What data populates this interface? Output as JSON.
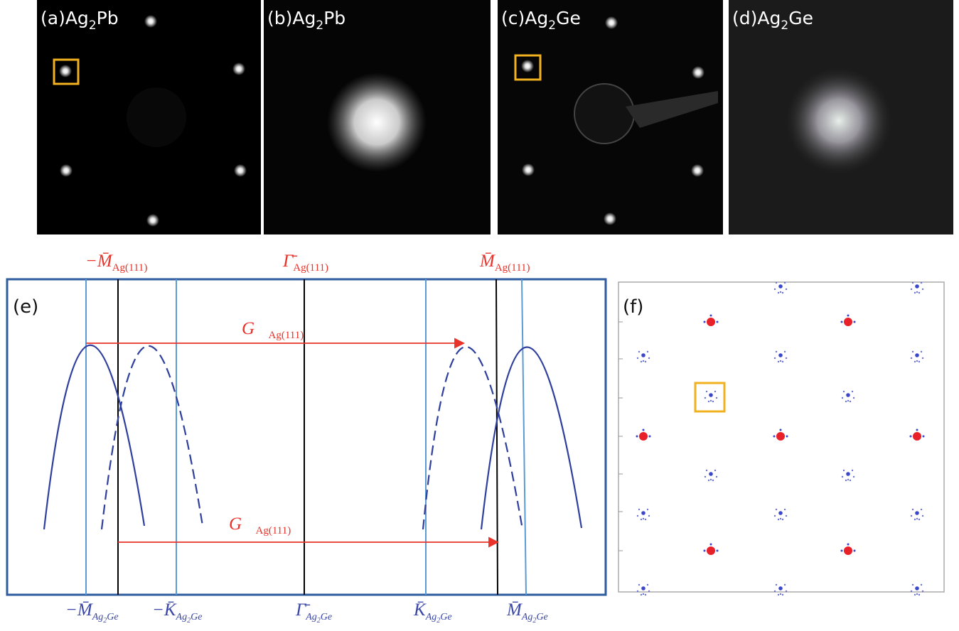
{
  "panels": [
    {
      "label": "(a)",
      "formula": {
        "main": "Ag",
        "sub": "2",
        "tail": "Pb"
      }
    },
    {
      "label": "(b)",
      "formula": {
        "main": "Ag",
        "sub": "2",
        "tail": "Pb"
      }
    },
    {
      "label": "(c)",
      "formula": {
        "main": "Ag",
        "sub": "2",
        "tail": "Ge"
      }
    },
    {
      "label": "(d)",
      "formula": {
        "main": "Ag",
        "sub": "2",
        "tail": "Ge"
      }
    }
  ],
  "panel_e": {
    "label": "(e)",
    "top_labels": [
      {
        "text": "−M̄",
        "sub": "Ag(111)"
      },
      {
        "text": "Γ̄",
        "sub": "Ag(111)"
      },
      {
        "text": "M̄",
        "sub": "Ag(111)"
      }
    ],
    "vectors": [
      {
        "text": "G⃗",
        "sub": "Ag(111)"
      },
      {
        "text": "G⃗",
        "sub": "Ag(111)"
      }
    ],
    "bottom_labels": [
      {
        "text": "−M̄",
        "sub": "Ag",
        "subsub": "2",
        "subtail": "Ge"
      },
      {
        "text": "−K̄",
        "sub": "Ag",
        "subsub": "2",
        "subtail": "Ge"
      },
      {
        "text": "Γ̄",
        "sub": "Ag",
        "subsub": "2",
        "subtail": "Ge"
      },
      {
        "text": "K̄",
        "sub": "Ag",
        "subsub": "2",
        "subtail": "Ge"
      },
      {
        "text": "M̄",
        "sub": "Ag",
        "subsub": "2",
        "subtail": "Ge"
      }
    ]
  },
  "panel_f": {
    "label": "(f)"
  }
}
